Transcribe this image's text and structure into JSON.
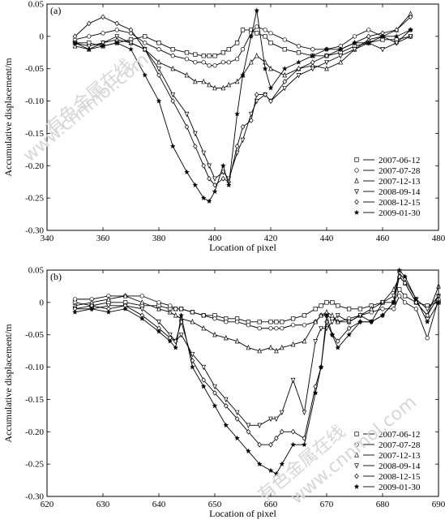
{
  "watermarks": [
    "有色金属在线",
    "www.cnnmol.com"
  ],
  "chart_data": [
    {
      "type": "line",
      "panel_label": "(a)",
      "xlabel": "Location of pixel",
      "ylabel": "Accumulative displacement/m",
      "xlim": [
        340,
        480
      ],
      "ylim": [
        -0.3,
        0.05
      ],
      "xticks": [
        "340",
        "360",
        "380",
        "400",
        "420",
        "440",
        "460",
        "480"
      ],
      "yticks": [
        "0.05",
        "0",
        "-0.05",
        "-0.10",
        "-0.15",
        "-0.20",
        "-0.25",
        "-0.30"
      ],
      "legend_position": "right",
      "x": [
        350,
        355,
        360,
        365,
        370,
        375,
        380,
        385,
        390,
        393,
        396,
        398,
        400,
        403,
        405,
        408,
        410,
        413,
        415,
        418,
        420,
        425,
        430,
        435,
        440,
        445,
        450,
        455,
        460,
        465,
        470
      ],
      "series": [
        {
          "name": "2007-06-12",
          "marker": "square",
          "values": [
            -0.01,
            -0.01,
            -0.015,
            -0.01,
            -0.005,
            0.0,
            -0.01,
            -0.02,
            -0.025,
            -0.028,
            -0.03,
            -0.03,
            -0.03,
            -0.025,
            -0.02,
            -0.01,
            0.01,
            0.01,
            0.005,
            0.0,
            -0.01,
            -0.02,
            -0.025,
            -0.03,
            -0.03,
            -0.025,
            -0.015,
            -0.01,
            -0.005,
            -0.005,
            0.0
          ]
        },
        {
          "name": "2007-07-28",
          "marker": "circle",
          "values": [
            -0.005,
            0.0,
            0.005,
            0.01,
            0.005,
            -0.01,
            -0.02,
            -0.03,
            -0.035,
            -0.04,
            -0.04,
            -0.045,
            -0.045,
            -0.04,
            -0.04,
            -0.035,
            -0.02,
            0.005,
            0.015,
            0.01,
            0.005,
            -0.005,
            -0.015,
            -0.02,
            -0.02,
            -0.015,
            0.0,
            0.01,
            0.0,
            -0.01,
            0.01
          ]
        },
        {
          "name": "2007-12-13",
          "marker": "triangle-up",
          "values": [
            -0.015,
            -0.02,
            -0.01,
            -0.005,
            -0.01,
            -0.02,
            -0.04,
            -0.05,
            -0.06,
            -0.07,
            -0.07,
            -0.075,
            -0.08,
            -0.08,
            -0.075,
            -0.07,
            -0.06,
            -0.04,
            -0.03,
            -0.04,
            -0.05,
            -0.06,
            -0.05,
            -0.045,
            -0.05,
            -0.04,
            -0.02,
            -0.005,
            0.0,
            0.01,
            0.035
          ]
        },
        {
          "name": "2008-09-14",
          "marker": "triangle-down",
          "values": [
            -0.01,
            -0.015,
            -0.01,
            0.0,
            -0.01,
            -0.02,
            -0.05,
            -0.09,
            -0.12,
            -0.15,
            -0.18,
            -0.2,
            -0.22,
            -0.21,
            -0.22,
            -0.18,
            -0.16,
            -0.12,
            -0.1,
            -0.09,
            -0.1,
            -0.08,
            -0.06,
            -0.05,
            -0.04,
            -0.03,
            -0.02,
            -0.01,
            -0.02,
            -0.01,
            0.0
          ]
        },
        {
          "name": "2008-12-15",
          "marker": "diamond",
          "values": [
            0.0,
            0.02,
            0.03,
            0.02,
            0.01,
            -0.02,
            -0.06,
            -0.1,
            -0.14,
            -0.17,
            -0.2,
            -0.22,
            -0.23,
            -0.22,
            -0.225,
            -0.17,
            -0.14,
            -0.13,
            -0.09,
            -0.09,
            -0.1,
            -0.07,
            -0.05,
            -0.04,
            -0.03,
            -0.02,
            -0.01,
            0.0,
            0.005,
            0.01,
            0.03
          ]
        },
        {
          "name": "2009-01-30",
          "marker": "star",
          "values": [
            -0.01,
            -0.02,
            -0.015,
            -0.01,
            -0.02,
            -0.06,
            -0.1,
            -0.17,
            -0.21,
            -0.23,
            -0.25,
            -0.255,
            -0.24,
            -0.2,
            -0.23,
            -0.12,
            -0.06,
            0.0,
            0.04,
            -0.05,
            -0.08,
            -0.05,
            -0.04,
            -0.03,
            -0.02,
            -0.02,
            -0.01,
            -0.01,
            0.0,
            0.0,
            0.01
          ]
        }
      ]
    },
    {
      "type": "line",
      "panel_label": "(b)",
      "xlabel": "Location of pixel",
      "ylabel": "Accumulative displacement/m",
      "xlim": [
        620,
        690
      ],
      "ylim": [
        -0.3,
        0.05
      ],
      "xticks": [
        "620",
        "630",
        "640",
        "650",
        "660",
        "670",
        "680",
        "690"
      ],
      "yticks": [
        "0.05",
        "0",
        "-0.05",
        "-0.10",
        "-0.15",
        "-0.20",
        "-0.25",
        "-0.30"
      ],
      "legend_position": "right",
      "x": [
        625,
        628,
        631,
        634,
        637,
        640,
        642,
        643,
        644,
        646,
        648,
        650,
        652,
        654,
        656,
        658,
        660,
        661,
        662,
        664,
        666,
        668,
        669,
        670,
        671,
        672,
        674,
        676,
        678,
        680,
        682,
        683,
        684,
        686,
        688,
        690
      ],
      "series": [
        {
          "name": "2007-06-12",
          "marker": "square",
          "values": [
            0.0,
            -0.005,
            0.0,
            0.0,
            -0.005,
            -0.005,
            -0.01,
            -0.01,
            -0.01,
            -0.015,
            -0.02,
            -0.02,
            -0.025,
            -0.025,
            -0.03,
            -0.03,
            -0.03,
            -0.03,
            -0.03,
            -0.025,
            -0.02,
            -0.01,
            -0.005,
            0.0,
            0.0,
            -0.005,
            -0.01,
            -0.01,
            -0.005,
            0.0,
            0.0,
            0.02,
            0.01,
            0.0,
            -0.005,
            0.0
          ]
        },
        {
          "name": "2007-07-28",
          "marker": "circle",
          "values": [
            0.005,
            0.005,
            0.01,
            0.01,
            0.01,
            0.0,
            -0.005,
            -0.01,
            -0.01,
            -0.015,
            -0.02,
            -0.025,
            -0.03,
            -0.03,
            -0.035,
            -0.04,
            -0.04,
            -0.04,
            -0.04,
            -0.035,
            -0.035,
            -0.03,
            -0.02,
            -0.02,
            -0.025,
            -0.03,
            -0.025,
            -0.02,
            -0.015,
            -0.01,
            -0.01,
            0.01,
            0.0,
            -0.01,
            -0.055,
            0.005
          ]
        },
        {
          "name": "2007-12-13",
          "marker": "triangle-up",
          "values": [
            -0.005,
            0.0,
            0.005,
            0.01,
            0.0,
            -0.01,
            -0.015,
            -0.02,
            -0.025,
            -0.03,
            -0.04,
            -0.05,
            -0.055,
            -0.06,
            -0.07,
            -0.075,
            -0.07,
            -0.075,
            -0.07,
            -0.065,
            -0.06,
            -0.03,
            -0.02,
            -0.015,
            -0.02,
            -0.03,
            -0.03,
            -0.02,
            -0.01,
            0.0,
            0.02,
            0.04,
            0.03,
            0.0,
            -0.02,
            0.025
          ]
        },
        {
          "name": "2008-09-14",
          "marker": "triangle-down",
          "values": [
            -0.01,
            -0.01,
            -0.005,
            -0.005,
            -0.01,
            -0.03,
            -0.05,
            -0.06,
            -0.05,
            -0.08,
            -0.1,
            -0.13,
            -0.15,
            -0.17,
            -0.19,
            -0.19,
            -0.18,
            -0.18,
            -0.17,
            -0.12,
            -0.17,
            -0.06,
            -0.04,
            -0.04,
            -0.03,
            -0.02,
            -0.03,
            -0.02,
            -0.03,
            0.0,
            0.01,
            0.045,
            0.035,
            0.005,
            -0.01,
            0.01
          ]
        },
        {
          "name": "2008-12-15",
          "marker": "diamond",
          "values": [
            -0.01,
            -0.005,
            -0.01,
            -0.005,
            -0.02,
            -0.04,
            -0.055,
            -0.06,
            -0.03,
            -0.09,
            -0.12,
            -0.14,
            -0.16,
            -0.18,
            -0.2,
            -0.22,
            -0.22,
            -0.21,
            -0.2,
            -0.2,
            -0.21,
            -0.13,
            -0.1,
            -0.03,
            -0.05,
            -0.06,
            -0.04,
            -0.03,
            -0.03,
            -0.02,
            0.0,
            0.04,
            0.03,
            0.0,
            -0.02,
            0.01
          ]
        },
        {
          "name": "2009-01-30",
          "marker": "star",
          "values": [
            -0.015,
            -0.01,
            -0.015,
            -0.01,
            -0.025,
            -0.045,
            -0.06,
            -0.07,
            -0.02,
            -0.1,
            -0.13,
            -0.16,
            -0.19,
            -0.21,
            -0.23,
            -0.25,
            -0.26,
            -0.265,
            -0.25,
            -0.22,
            -0.22,
            -0.14,
            -0.1,
            -0.02,
            -0.05,
            -0.07,
            -0.05,
            -0.03,
            -0.03,
            -0.02,
            0.0,
            0.05,
            0.04,
            0.005,
            -0.03,
            0.0
          ]
        }
      ]
    }
  ]
}
